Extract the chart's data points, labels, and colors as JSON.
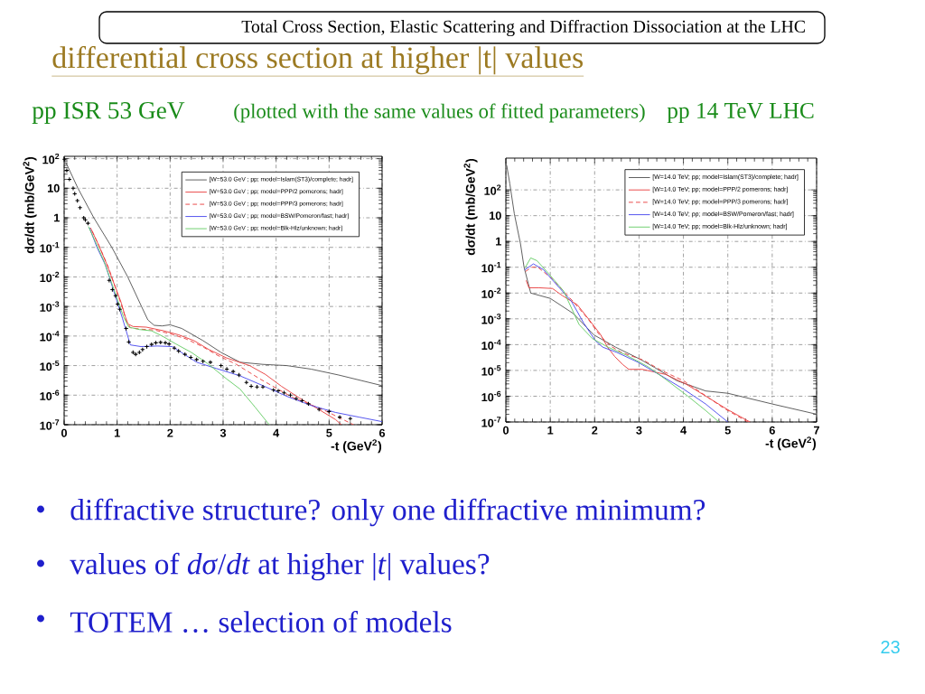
{
  "chart_data": [
    {
      "type": "line",
      "title": "pp ISR 53 GeV",
      "xlabel": "-t (GeV$^{2}$)",
      "ylabel": "dσ/dt (mb/GeV$^{2}$)",
      "annotations": [
        "Total Cross Section, Elastic Scattering and Diffraction Dissociation at the LHC",
        "differential cross section at higher |t| values",
        "(plotted with the same values of fitted parameters)",
        "•",
        "diffractive structure? only one diffractive minimum?",
        "•",
        "values of *dσ*/*dt* at higher |*t*| values?",
        "•",
        "TOTEM … selection of models",
        "23"
      ],
      "xlim": [
        0,
        6
      ],
      "xticks": [
        0,
        1,
        2,
        3,
        4,
        5,
        6
      ],
      "ylim": [
        1e-07,
        120
      ],
      "yticks": [
        {
          "value": 1e-07,
          "label": "10$^{-7}$"
        },
        {
          "value": 1e-06,
          "label": "10$^{-6}$"
        },
        {
          "value": 1e-05,
          "label": "10$^{-5}$"
        },
        {
          "value": 0.0001,
          "label": "10$^{-4}$"
        },
        {
          "value": 0.001,
          "label": "10$^{-3}$"
        },
        {
          "value": 0.01,
          "label": "10$^{-2}$"
        },
        {
          "value": 0.1,
          "label": "10$^{-1}$"
        },
        1,
        10,
        {
          "value": 100,
          "label": "10$^{2}$"
        }
      ],
      "log": "y",
      "grid": true,
      "legend": "top right",
      "series": [
        {
          "name": "[W=53.0 GeV ; pp; model=Islam(ST3)/complete; hadr]",
          "color": "#555555",
          "line_style": "solid",
          "x": [
            0.04,
            0.26,
            0.56,
            0.9,
            1.2,
            1.46,
            1.58,
            1.7,
            1.85,
            2.0,
            2.22,
            2.62,
            2.96,
            3.32,
            3.75,
            4.2,
            4.66,
            5.18,
            6.0
          ],
          "values": [
            70,
            10,
            1,
            0.1,
            0.01,
            0.001,
            0.00035,
            0.00023,
            0.00022,
            0.00024,
            0.00018,
            7e-05,
            2.8e-05,
            1.3e-05,
            1.1e-05,
            1e-05,
            7.6e-06,
            4.8e-06,
            2.1e-06
          ]
        },
        {
          "name": "[W=53.0 GeV ; pp; model=PPP/2 pomerons; hadr]",
          "color": "#e84040",
          "line_style": "solid",
          "x": [
            0.5,
            0.66,
            0.8,
            1.08,
            1.14,
            1.2,
            1.3,
            1.55,
            1.88,
            2.16,
            2.45,
            2.73,
            3.07,
            3.5,
            3.8,
            4.1,
            4.44,
            4.78,
            5.12,
            5.23
          ],
          "values": [
            0.45,
            0.11,
            0.028,
            0.0013,
            0.00054,
            0.00026,
            0.00021,
            0.0002,
            0.00015,
            0.00011,
            7e-05,
            3.5e-05,
            1.8e-05,
            1e-05,
            5e-06,
            2e-06,
            8e-07,
            3.5e-07,
            1.5e-07,
            1e-07
          ]
        },
        {
          "name": "[W=53.0 GeV ; pp; model=PPP/3 pomerons; hadr]",
          "color": "#e84040",
          "line_style": "dashed",
          "x": [
            0.53,
            0.69,
            0.84,
            1.11,
            1.17,
            1.25,
            1.45,
            1.7,
            2.0,
            2.3,
            2.6,
            2.9,
            3.25,
            3.7,
            4.3,
            4.89,
            5.46
          ],
          "values": [
            0.35,
            0.085,
            0.02,
            0.0008,
            0.00034,
            0.00019,
            0.00017,
            0.00016,
            0.00012,
            8e-05,
            4.5e-05,
            2.2e-05,
            1.1e-05,
            3.5e-06,
            8.6e-07,
            3.2e-07,
            1e-07
          ]
        },
        {
          "name": "[W=53.0 GeV ; pp; model=BSW/Pomeron/fast; hadr]",
          "color": "#4a4aee",
          "line_style": "solid",
          "x": [
            0.48,
            0.62,
            0.78,
            1.1,
            1.25,
            1.45,
            1.76,
            2.04,
            2.5,
            2.87,
            3.32,
            3.75,
            4.21,
            4.66,
            5.12,
            5.57,
            6.0
          ],
          "values": [
            0.45,
            0.1,
            0.025,
            0.0004,
            5e-05,
            4.4e-05,
            4.6e-05,
            4.4e-05,
            1.3e-05,
            8e-06,
            4.5e-06,
            2.1e-06,
            9e-07,
            4.5e-07,
            2.6e-07,
            1.8e-07,
            1.27e-07
          ]
        },
        {
          "name": "[W=53.0 GeV ; pp; model=Blk-Hlz/unknown; hadr]",
          "color": "#66cc66",
          "line_style": "solid",
          "x": [
            0.46,
            0.6,
            0.75,
            1.12,
            1.22,
            1.42,
            1.65,
            1.85,
            2.1,
            2.4,
            2.7,
            3.07,
            3.32,
            3.6,
            3.87
          ],
          "values": [
            0.5,
            0.14,
            0.035,
            0.00045,
            0.0002,
            0.000166,
            0.00015,
            0.0001,
            5.5e-05,
            2.8e-05,
            1.2e-05,
            3.5e-06,
            1.6e-06,
            4e-07,
            1e-07
          ]
        },
        {
          "type": "scatter",
          "color": "#000000",
          "marker": "cross",
          "x": [
            0.005,
            0.05,
            0.1,
            0.17,
            0.2,
            0.25,
            0.3,
            0.37,
            0.4,
            0.45,
            0.85,
            0.91,
            0.97,
            1.01,
            1.05,
            1.17,
            1.22,
            1.3,
            1.35,
            1.42,
            1.48,
            1.56,
            1.65,
            1.73,
            1.82,
            1.91,
            1.98,
            2.08,
            2.16,
            2.28,
            2.39,
            2.5,
            2.62,
            2.76,
            2.96,
            3.07,
            3.19,
            3.3,
            3.44,
            3.53,
            3.64,
            3.75,
            3.95,
            4.04,
            4.15,
            4.27,
            4.38,
            4.49,
            4.61,
            4.81,
            5.0,
            5.2,
            5.4
          ],
          "values": [
            95,
            40,
            20,
            10,
            6.5,
            3.8,
            2.2,
            1,
            0.85,
            0.65,
            0.0076,
            0.0037,
            0.0023,
            0.0012,
            0.0008,
            0.00018,
            6.3e-05,
            2.8e-05,
            2.4e-05,
            2.8e-05,
            3.5e-05,
            4.4e-05,
            5.2e-05,
            5.9e-05,
            6.1e-05,
            5.9e-05,
            5.4e-05,
            3.9e-05,
            3.1e-05,
            2.4e-05,
            1.9e-05,
            1.6e-05,
            1.4e-05,
            1.3e-05,
            1e-05,
            7.6e-06,
            6.3e-06,
            4.8e-06,
            2.7e-06,
            2e-06,
            1.9e-06,
            1.9e-06,
            1.5e-06,
            1.4e-06,
            1.2e-06,
            1e-06,
            7.6e-07,
            6.5e-07,
            5.1e-07,
            3.3e-07,
            2.8e-07,
            1.8e-07,
            1.6e-07
          ]
        }
      ]
    },
    {
      "type": "line",
      "title": "pp 14 TeV LHC",
      "xlabel": "-t (GeV$^{2}$)",
      "ylabel": "dσ/dt (mb/GeV$^{2}$)",
      "xlim": [
        0,
        7
      ],
      "xticks": [
        0,
        1,
        2,
        3,
        4,
        5,
        6,
        7
      ],
      "ylim": [
        1e-07,
        1700
      ],
      "yticks": [
        {
          "value": 1e-07,
          "label": "10$^{-7}$"
        },
        {
          "value": 1e-06,
          "label": "10$^{-6}$"
        },
        {
          "value": 1e-05,
          "label": "10$^{-5}$"
        },
        {
          "value": 0.0001,
          "label": "10$^{-4}$"
        },
        {
          "value": 0.001,
          "label": "10$^{-3}$"
        },
        {
          "value": 0.01,
          "label": "10$^{-2}$"
        },
        {
          "value": 0.1,
          "label": "10$^{-1}$"
        },
        1,
        10,
        {
          "value": 100,
          "label": "10$^{2}$"
        }
      ],
      "log": "y",
      "grid": true,
      "legend": "top right",
      "series": [
        {
          "name": "[W=14.0 TeV; pp; model=Islam(ST3)/complete; hadr]",
          "color": "#555555",
          "line_style": "solid",
          "x": [
            0.02,
            0.09,
            0.19,
            0.33,
            0.41,
            0.56,
            1.0,
            1.52,
            1.98,
            2.47,
            3.01,
            3.35,
            3.85,
            4.5,
            5.0,
            6.0,
            7.0
          ],
          "values": [
            870,
            170,
            12,
            0.8,
            0.1,
            0.01,
            0.0062,
            0.0016,
            0.00024,
            8e-05,
            2.8e-05,
            1.3e-05,
            4e-06,
            1.6e-06,
            1.3e-06,
            5e-07,
            2e-07
          ]
        },
        {
          "name": "[W=14.0 TeV; pp; model=PPP/2 pomerons; hadr]",
          "color": "#e84040",
          "line_style": "solid",
          "x": [
            0.46,
            0.52,
            0.75,
            1.05,
            1.27,
            1.61,
            1.93,
            2.13,
            2.29,
            2.45,
            2.63,
            2.77,
            3.07,
            3.6,
            4.05,
            4.55,
            5.0,
            5.5
          ],
          "values": [
            0.03,
            0.016,
            0.016,
            0.015,
            0.008,
            0.0035,
            0.0007,
            0.00025,
            8e-05,
            3.5e-05,
            1.7e-05,
            1.1e-05,
            1.1e-05,
            7e-06,
            3e-06,
            9e-07,
            3e-07,
            1e-07
          ]
        },
        {
          "name": "[W=14.0 TeV; pp; model=PPP/3 pomerons; hadr]",
          "color": "#e84040",
          "line_style": "dashed",
          "x": [
            0.45,
            0.58,
            0.72,
            1.05,
            1.5,
            1.85,
            2.1,
            2.35,
            2.6,
            3.1,
            3.5,
            4.0,
            4.45,
            4.9,
            5.45
          ],
          "values": [
            0.07,
            0.1,
            0.1,
            0.035,
            0.005,
            0.001,
            0.00025,
            9e-05,
            5e-05,
            2.5e-05,
            1e-05,
            4e-06,
            1.2e-06,
            3.5e-07,
            1e-07
          ]
        },
        {
          "name": "[W=14.0 TeV; pp; model=BSW/Pomeron/fast; hadr]",
          "color": "#4a4aee",
          "line_style": "solid",
          "x": [
            0.43,
            0.62,
            0.85,
            1.0,
            1.48,
            1.75,
            2.02,
            2.18,
            2.5,
            2.97,
            3.45,
            4.0,
            4.5,
            5.0
          ],
          "values": [
            0.08,
            0.135,
            0.08,
            0.04,
            0.0047,
            0.0007,
            0.00014,
            8e-05,
            5e-05,
            2.1e-05,
            7e-06,
            1.9e-06,
            5e-07,
            1e-07
          ]
        },
        {
          "name": "[W=14.0 TeV; pp; model=Blk-Hlz/unknown; hadr]",
          "color": "#66cc66",
          "line_style": "solid",
          "x": [
            0.44,
            0.56,
            0.7,
            0.95,
            1.3,
            1.65,
            1.95,
            2.3,
            2.7,
            3.2,
            3.6,
            4.1,
            4.5,
            4.8
          ],
          "values": [
            0.1,
            0.23,
            0.18,
            0.06,
            0.012,
            0.0006,
            0.00017,
            8e-05,
            4e-05,
            1.4e-05,
            4.5e-06,
            1e-06,
            2.8e-07,
            1e-07
          ]
        }
      ]
    }
  ]
}
